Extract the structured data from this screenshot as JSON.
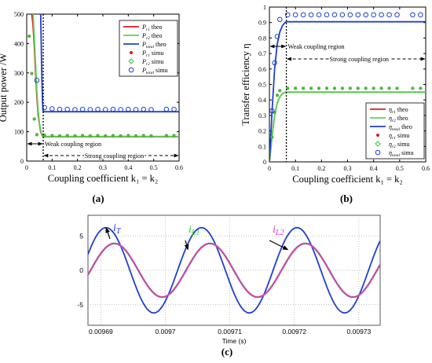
{
  "chart_data": [
    {
      "panel": "(a)",
      "type": "line",
      "xlabel": "Coupling coefficient k₁ = k₂",
      "ylabel": "Output power /W",
      "xlim": [
        0,
        0.6
      ],
      "ylim": [
        0,
        500
      ],
      "xticks": [
        0,
        0.1,
        0.2,
        0.3,
        0.4,
        0.5,
        0.6
      ],
      "yticks": [
        0,
        100,
        200,
        300,
        400,
        500
      ],
      "grid": false,
      "legend_position": "top-right",
      "threshold_x": 0.065,
      "annotations": [
        "Weak coupling region",
        "Strong coupling region"
      ],
      "series": [
        {
          "name": "Pᵣ₁ theo",
          "kind": "line",
          "color": "#e41a1c",
          "x": [
            0.02,
            0.025,
            0.03,
            0.035,
            0.04,
            0.045,
            0.05,
            0.055,
            0.06,
            0.065,
            0.6
          ],
          "y": [
            500,
            460,
            390,
            300,
            220,
            160,
            125,
            100,
            88,
            83,
            83
          ]
        },
        {
          "name": "Pᵣ₂ theo",
          "kind": "line",
          "color": "#5cd05c",
          "x": [
            0.025,
            0.03,
            0.035,
            0.04,
            0.045,
            0.05,
            0.055,
            0.06,
            0.065,
            0.6
          ],
          "y": [
            500,
            420,
            330,
            240,
            175,
            130,
            105,
            90,
            84,
            84
          ]
        },
        {
          "name": "Pₜₒₜₐₗ theo",
          "kind": "line",
          "color": "#1f3fd0",
          "x": [
            0.055,
            0.0575,
            0.06,
            0.0625,
            0.065,
            0.6
          ],
          "y": [
            500,
            380,
            270,
            200,
            168,
            168
          ]
        },
        {
          "name": "Pᵣ₁ simu",
          "kind": "marker",
          "color": "#e41a1c",
          "x": [
            0.01,
            0.02,
            0.03,
            0.04,
            0.07,
            0.1,
            0.13,
            0.16,
            0.19,
            0.22,
            0.25,
            0.28,
            0.31,
            0.34,
            0.37,
            0.4,
            0.43,
            0.46,
            0.49,
            0.55,
            0.58
          ],
          "y": [
            425,
            298,
            143,
            90,
            88,
            87,
            86,
            87,
            86,
            87,
            86,
            87,
            86,
            87,
            86,
            87,
            86,
            87,
            86,
            87,
            87
          ]
        },
        {
          "name": "Pᵣ₂ simu",
          "kind": "marker",
          "color": "#3cc43c",
          "x": [
            0.01,
            0.02,
            0.03,
            0.04,
            0.07,
            0.1,
            0.13,
            0.16,
            0.19,
            0.22,
            0.25,
            0.28,
            0.31,
            0.34,
            0.37,
            0.4,
            0.43,
            0.46,
            0.49,
            0.55,
            0.58
          ],
          "y": [
            425,
            298,
            143,
            90,
            88,
            87,
            86,
            87,
            86,
            87,
            86,
            87,
            86,
            87,
            86,
            87,
            86,
            87,
            86,
            87,
            87
          ]
        },
        {
          "name": "Pₜₒₜₐₗ simu",
          "kind": "marker",
          "color": "#1f3fd0",
          "x": [
            0.04,
            0.07,
            0.1,
            0.13,
            0.16,
            0.19,
            0.22,
            0.25,
            0.28,
            0.31,
            0.34,
            0.37,
            0.4,
            0.43,
            0.46,
            0.49,
            0.55,
            0.58
          ],
          "y": [
            275,
            182,
            178,
            176,
            176,
            175,
            176,
            175,
            176,
            175,
            176,
            175,
            176,
            175,
            176,
            175,
            176,
            176
          ]
        }
      ]
    },
    {
      "panel": "(b)",
      "type": "line",
      "xlabel": "Coupling coefficient k₁ = k₂",
      "ylabel": "Transfer efficiency η",
      "xlim": [
        0,
        0.6
      ],
      "ylim": [
        0,
        1
      ],
      "xticks": [
        0,
        0.1,
        0.2,
        0.3,
        0.4,
        0.5,
        0.6
      ],
      "yticks": [
        0,
        0.1,
        0.2,
        0.3,
        0.4,
        0.5,
        0.6,
        0.7,
        0.8,
        0.9,
        1
      ],
      "grid": false,
      "legend_position": "bottom-right",
      "threshold_x": 0.065,
      "annotations": [
        "Weak coupling region",
        "Strong coupling region"
      ],
      "series": [
        {
          "name": "ηᵣ₁ theo",
          "kind": "line",
          "color": "#e41a1c",
          "x": [
            0,
            0.01,
            0.02,
            0.03,
            0.04,
            0.05,
            0.06,
            0.065,
            0.6
          ],
          "y": [
            0,
            0.16,
            0.3,
            0.38,
            0.42,
            0.44,
            0.45,
            0.45,
            0.45
          ]
        },
        {
          "name": "ηᵣ₂ theo",
          "kind": "line",
          "color": "#5cd05c",
          "x": [
            0,
            0.01,
            0.02,
            0.03,
            0.04,
            0.05,
            0.06,
            0.065,
            0.6
          ],
          "y": [
            0,
            0.16,
            0.3,
            0.38,
            0.42,
            0.44,
            0.45,
            0.45,
            0.45
          ]
        },
        {
          "name": "ηₜₒₜₐₗ theo",
          "kind": "line",
          "color": "#1f3fd0",
          "x": [
            0,
            0.01,
            0.02,
            0.03,
            0.04,
            0.05,
            0.06,
            0.065,
            0.6
          ],
          "y": [
            0,
            0.32,
            0.6,
            0.76,
            0.84,
            0.88,
            0.9,
            0.905,
            0.905
          ]
        },
        {
          "name": "ηᵣ₁ simu",
          "kind": "marker",
          "color": "#e41a1c",
          "x": [
            0.01,
            0.02,
            0.03,
            0.04,
            0.07,
            0.1,
            0.13,
            0.16,
            0.19,
            0.22,
            0.25,
            0.28,
            0.31,
            0.34,
            0.37,
            0.4,
            0.43,
            0.46,
            0.49,
            0.55,
            0.58
          ],
          "y": [
            0.16,
            0.32,
            0.43,
            0.46,
            0.475,
            0.475,
            0.475,
            0.475,
            0.475,
            0.475,
            0.475,
            0.475,
            0.475,
            0.475,
            0.475,
            0.475,
            0.475,
            0.475,
            0.475,
            0.475,
            0.475
          ]
        },
        {
          "name": "ηᵣ₂ simu",
          "kind": "marker",
          "color": "#3cc43c",
          "x": [
            0.01,
            0.02,
            0.03,
            0.04,
            0.07,
            0.1,
            0.13,
            0.16,
            0.19,
            0.22,
            0.25,
            0.28,
            0.31,
            0.34,
            0.37,
            0.4,
            0.43,
            0.46,
            0.49,
            0.55,
            0.58
          ],
          "y": [
            0.16,
            0.32,
            0.43,
            0.46,
            0.475,
            0.475,
            0.475,
            0.475,
            0.475,
            0.475,
            0.475,
            0.475,
            0.475,
            0.475,
            0.475,
            0.475,
            0.475,
            0.475,
            0.475,
            0.475,
            0.475
          ]
        },
        {
          "name": "ηₜₒₜₐₗ simu",
          "kind": "marker",
          "color": "#1f3fd0",
          "x": [
            0.01,
            0.02,
            0.03,
            0.04,
            0.07,
            0.1,
            0.13,
            0.16,
            0.19,
            0.22,
            0.25,
            0.28,
            0.31,
            0.34,
            0.37,
            0.4,
            0.43,
            0.46,
            0.49,
            0.55,
            0.58
          ],
          "y": [
            0.33,
            0.64,
            0.81,
            0.92,
            0.95,
            0.95,
            0.95,
            0.95,
            0.95,
            0.95,
            0.95,
            0.95,
            0.95,
            0.95,
            0.95,
            0.95,
            0.95,
            0.95,
            0.95,
            0.95,
            0.95
          ]
        }
      ]
    },
    {
      "panel": "(c)",
      "type": "line",
      "xlabel": "Time (s)",
      "ylabel": "",
      "xlim": [
        0.009688,
        0.0097333
      ],
      "ylim": [
        -8,
        8
      ],
      "xticks": [
        0.00969,
        0.0097,
        0.00971,
        0.00972,
        0.00973
      ],
      "xtick_labels": [
        "0.00969",
        "0.0097",
        "0.00971",
        "0.00972",
        "0.00973"
      ],
      "yticks": [
        -5,
        0,
        5
      ],
      "grid": true,
      "legend_position": "none",
      "series": [
        {
          "name": "i_T",
          "kind": "sine",
          "color": "#1f3fd0",
          "amplitude": 6.2,
          "period": 1.48e-05,
          "peak_times": [
            0.0096908,
            0.0097056,
            0.0097204,
            0.0097352
          ]
        },
        {
          "name": "i_L1",
          "kind": "sine",
          "color": "#33cc33",
          "amplitude": 3.9,
          "period": 1.48e-05,
          "peak_times": [
            0.0096921,
            0.0097069,
            0.0097217,
            0.0097365
          ]
        },
        {
          "name": "i_L2",
          "kind": "sine",
          "color": "#e633cc",
          "amplitude": 3.9,
          "period": 1.48e-05,
          "peak_times": [
            0.0096921,
            0.0097069,
            0.0097217,
            0.0097365
          ]
        }
      ],
      "annotations": [
        {
          "label": "i",
          "sub": "T",
          "color": "#1f3fd0",
          "target_x": 0.0096908,
          "target_y": 6.2
        },
        {
          "label": "i",
          "sub": "L1",
          "color": "#33cc33",
          "target_x": 0.0097035,
          "target_y": 3.0
        },
        {
          "label": "i",
          "sub": "L2",
          "color": "#e633cc",
          "target_x": 0.009719,
          "target_y": 3.0
        }
      ]
    }
  ],
  "panel_labels": [
    "(a)",
    "(b)",
    "(c)"
  ],
  "legend_a": [
    {
      "sym": "P",
      "sub": "r1",
      "suffix": " theo",
      "kind": "line",
      "color": "#e41a1c"
    },
    {
      "sym": "P",
      "sub": "r2",
      "suffix": " theo",
      "kind": "line",
      "color": "#5cd05c"
    },
    {
      "sym": "P",
      "sub": "total",
      "suffix": " theo",
      "kind": "line",
      "color": "#1f3fd0"
    },
    {
      "sym": "P",
      "sub": "r1",
      "suffix": " simu",
      "kind": "dot",
      "color": "#e41a1c"
    },
    {
      "sym": "P",
      "sub": "r2",
      "suffix": " simu",
      "kind": "diamond",
      "color": "#3cc43c"
    },
    {
      "sym": "P",
      "sub": "total",
      "suffix": " simu",
      "kind": "circle",
      "color": "#1f3fd0"
    }
  ],
  "legend_b": [
    {
      "sym": "η",
      "sub": "r1",
      "suffix": " theo",
      "kind": "line",
      "color": "#e41a1c"
    },
    {
      "sym": "η",
      "sub": "r2",
      "suffix": " theo",
      "kind": "line",
      "color": "#5cd05c"
    },
    {
      "sym": "η",
      "sub": "total",
      "suffix": " theo",
      "kind": "line",
      "color": "#1f3fd0"
    },
    {
      "sym": "η",
      "sub": "r1",
      "suffix": " simu",
      "kind": "dot",
      "color": "#e41a1c"
    },
    {
      "sym": "η",
      "sub": "r2",
      "suffix": " simu",
      "kind": "diamond",
      "color": "#3cc43c"
    },
    {
      "sym": "η",
      "sub": "total",
      "suffix": " simu",
      "kind": "circle",
      "color": "#1f3fd0"
    }
  ]
}
